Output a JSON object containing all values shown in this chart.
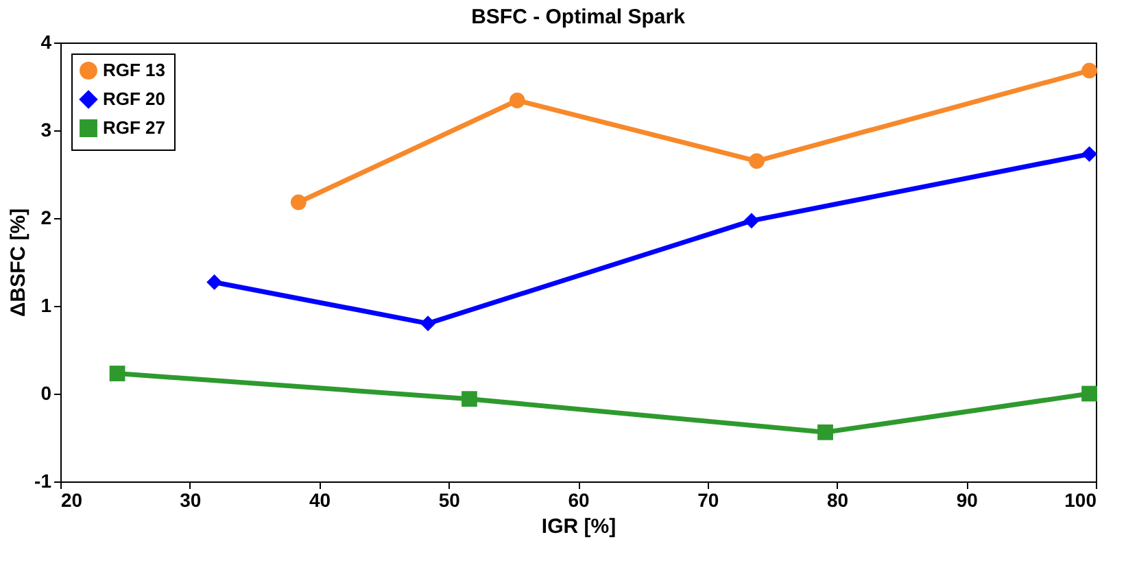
{
  "chart_data": {
    "type": "line",
    "title": "BSFC - Optimal Spark",
    "xlabel": "IGR [%]",
    "ylabel": "ΔBSFC [%]",
    "xlim": [
      20,
      100
    ],
    "xticks": [
      20,
      30,
      40,
      50,
      60,
      70,
      80,
      90,
      100
    ],
    "ylim": [
      -1,
      4
    ],
    "yticks": [
      -1,
      0,
      1,
      2,
      3,
      4
    ],
    "grid": false,
    "legend": "top left",
    "line_style": "solid",
    "series": [
      {
        "name": "RGF 13",
        "color": "#f7892b",
        "marker": "circle",
        "x": [
          38.4,
          55.3,
          73.8,
          99.5
        ],
        "values": [
          2.18,
          3.34,
          2.65,
          3.68
        ]
      },
      {
        "name": "RGF 20",
        "color": "#0000ff",
        "marker": "diamond",
        "x": [
          31.9,
          48.4,
          73.4,
          99.5
        ],
        "values": [
          1.27,
          0.8,
          1.97,
          2.73
        ]
      },
      {
        "name": "RGF 27",
        "color": "#2e9a2e",
        "marker": "square",
        "x": [
          24.4,
          51.6,
          79.1,
          99.5
        ],
        "values": [
          0.23,
          -0.06,
          -0.44,
          0
        ]
      }
    ]
  }
}
